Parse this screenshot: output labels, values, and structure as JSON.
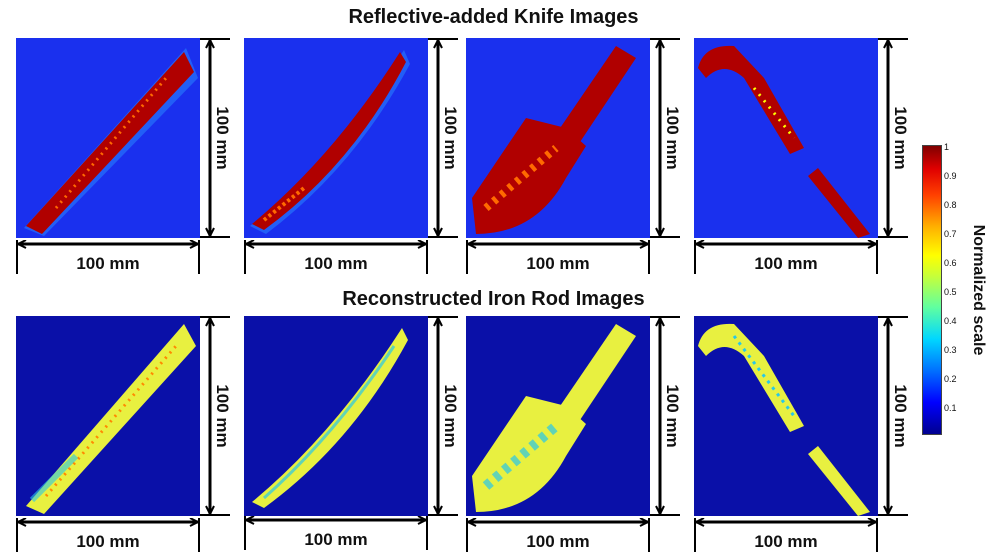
{
  "titles": {
    "top": "Reflective-added Knife Images",
    "bottom": "Reconstructed Iron Rod Images"
  },
  "dimensions": {
    "width_label": "100 mm",
    "height_label": "100 mm"
  },
  "colorbar": {
    "label": "Normalized scale",
    "ticks": [
      "1",
      "0.9",
      "0.8",
      "0.7",
      "0.6",
      "0.5",
      "0.4",
      "0.3",
      "0.2",
      "0.1"
    ],
    "colors": {
      "low": "#00008f",
      "mid": "#ffff00",
      "high": "#800000"
    }
  },
  "rows": [
    {
      "name": "reflective-knife",
      "background": "#1a30ee",
      "fill": "#b00000",
      "speckle": "#ff6a00",
      "halo": "#2a8cff"
    },
    {
      "name": "reconstructed-rod",
      "background": "#0a10a8",
      "fill": "#e8f040",
      "speckle": "#ff8a00",
      "halo": "#28c8e8"
    }
  ]
}
